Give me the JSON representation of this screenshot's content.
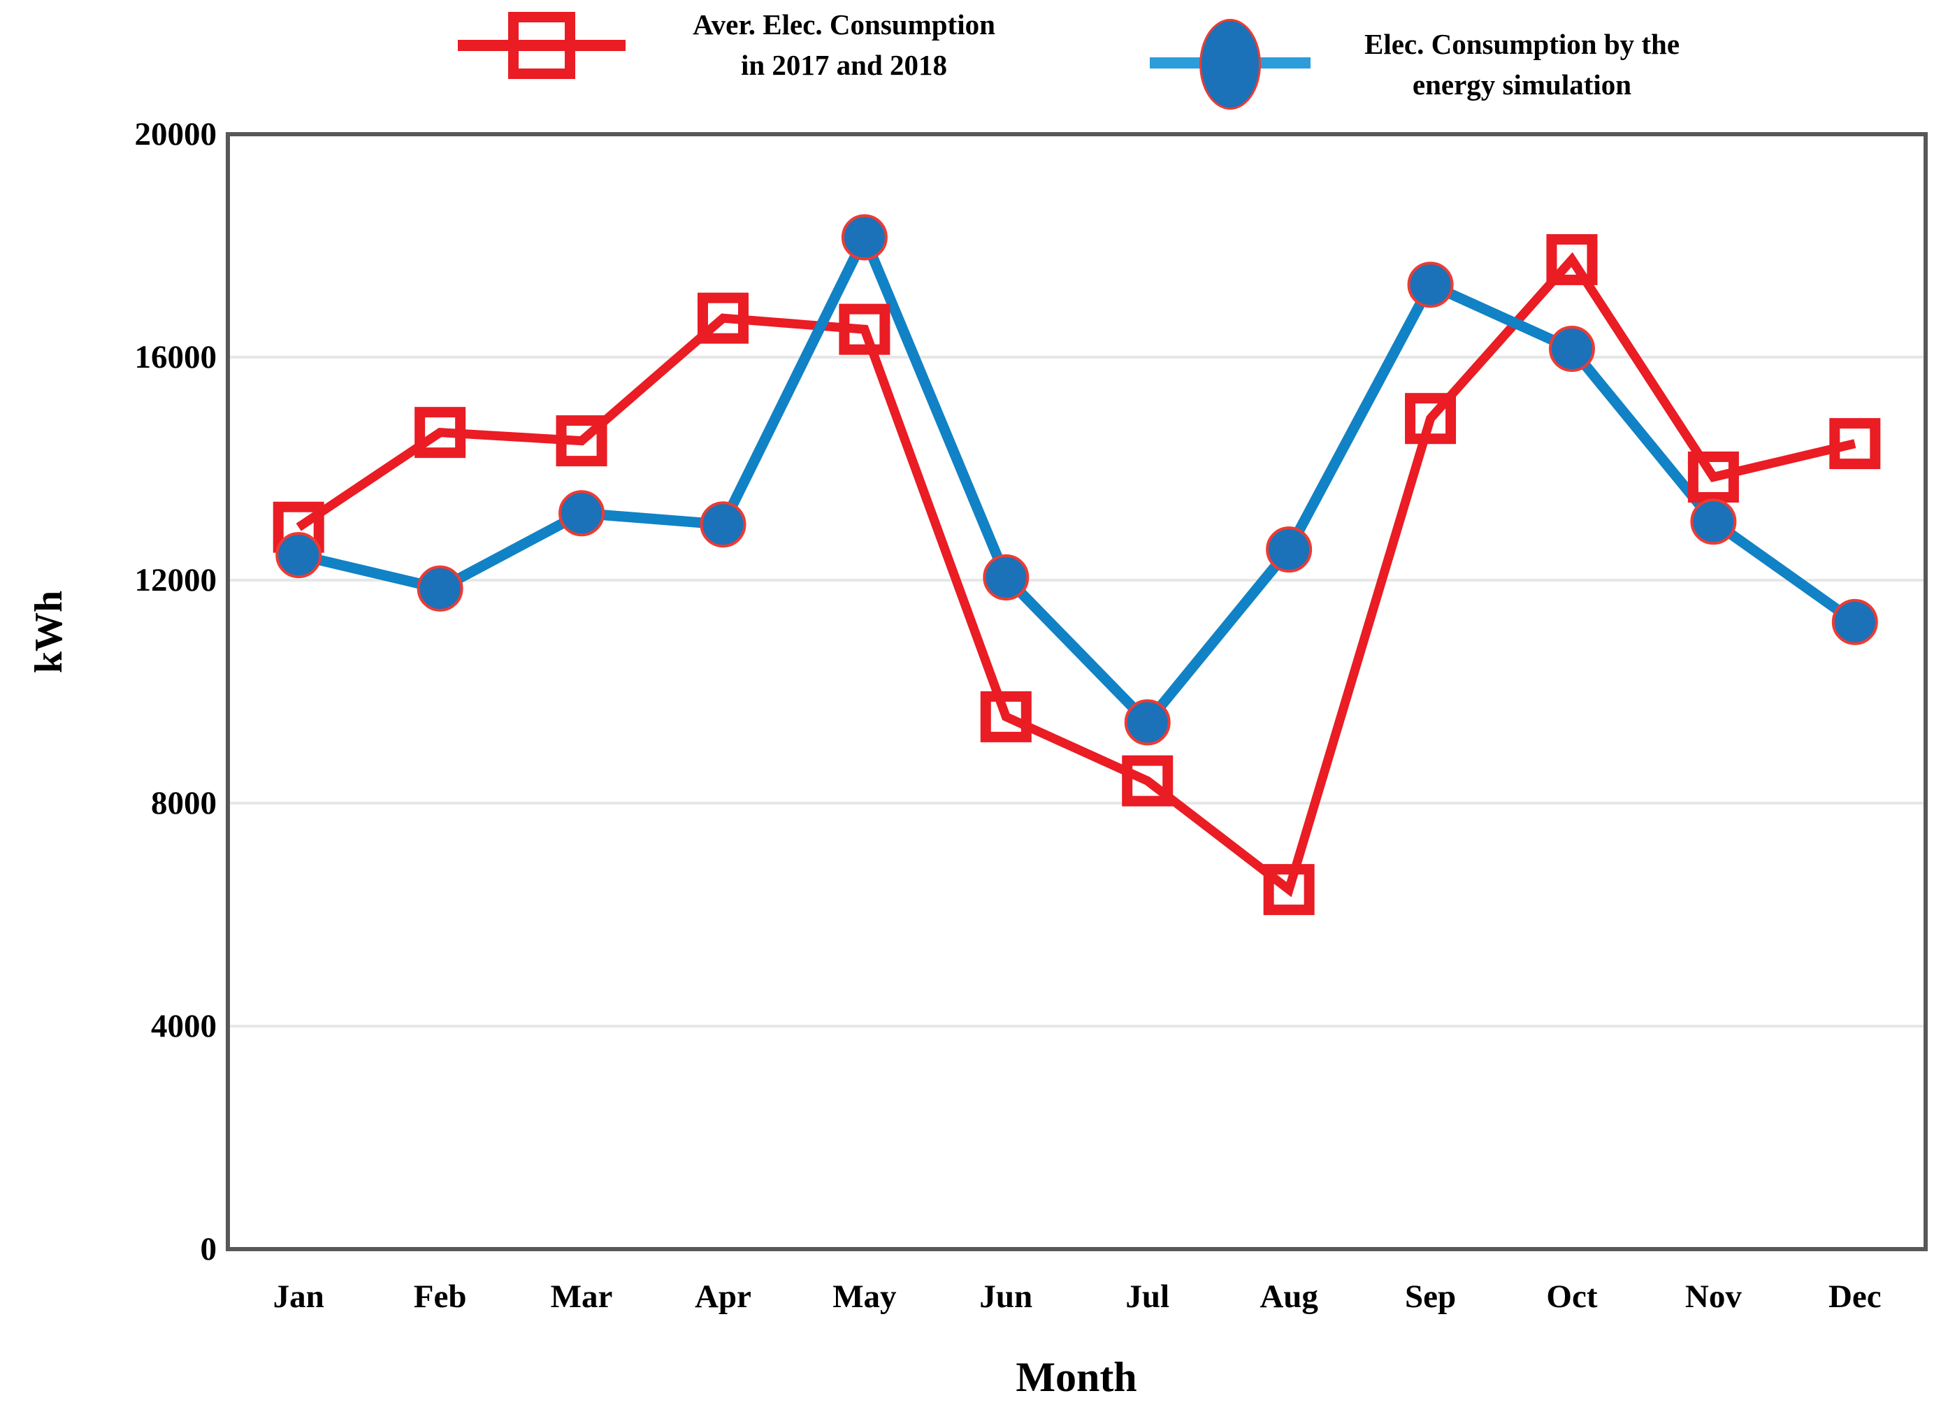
{
  "chart_data": {
    "type": "line",
    "title": "",
    "xlabel": "Month",
    "ylabel": "kWh",
    "categories": [
      "Jan",
      "Feb",
      "Mar",
      "Apr",
      "May",
      "Jun",
      "Jul",
      "Aug",
      "Sep",
      "Oct",
      "Nov",
      "Dec"
    ],
    "yticks": [
      0,
      4000,
      8000,
      12000,
      16000,
      20000
    ],
    "ylim": [
      0,
      20000
    ],
    "grid": "horizontal light gray lines at each 4000 kWh tick",
    "legend_position": "top-center",
    "frame_color": "#58585A",
    "gridline_color": "#E7E7E7",
    "series": [
      {
        "name": "Aver. Elec. Consumption in 2017 and 2018",
        "legend_lines": [
          "Aver. Elec. Consumption",
          "in 2017 and 2018"
        ],
        "marker": "open-square",
        "line_color": "#EA1C24",
        "marker_color": "#EA1C24",
        "legend_line_color": "#EA1C24",
        "values": [
          12950,
          14650,
          14500,
          16700,
          16500,
          9550,
          8400,
          6450,
          14900,
          17750,
          13850,
          14450
        ]
      },
      {
        "name": "Elec. Consumption by the energy simulation",
        "legend_lines": [
          "Elec. Consumption by the",
          "energy simulation"
        ],
        "marker": "filled-circle",
        "line_color": "#1182C5",
        "marker_color": "#1B72B8",
        "marker_outline": "#ED3B33",
        "legend_line_color": "#2D9CDB",
        "values": [
          12450,
          11850,
          13200,
          13000,
          18150,
          12050,
          9450,
          12550,
          17300,
          16150,
          13050,
          11250
        ]
      }
    ]
  }
}
